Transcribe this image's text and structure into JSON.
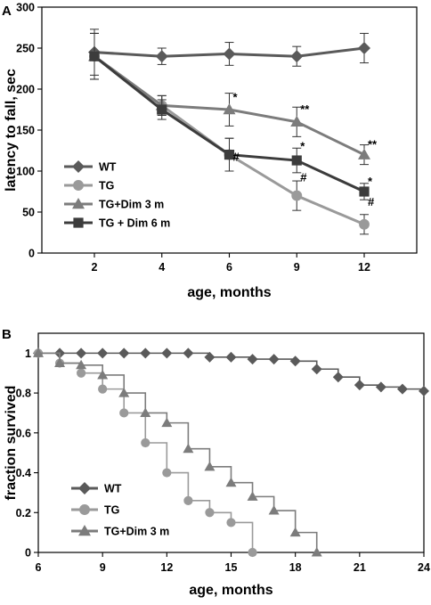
{
  "chart_data": [
    {
      "panel_label": "A",
      "type": "line",
      "xlabel": "age, months",
      "ylabel": "latency to fall, sec",
      "x_ticks": [
        2,
        4,
        6,
        9,
        12
      ],
      "y_ticks": [
        0,
        50,
        100,
        150,
        200,
        250,
        300
      ],
      "ylim": [
        0,
        300
      ],
      "x_spacing": "categorical",
      "grid": false,
      "legend_position": "bottom-left",
      "series": [
        {
          "name": "WT",
          "color": "#5a5a5a",
          "marker": "diamond",
          "x": [
            2,
            4,
            6,
            9,
            12
          ],
          "y": [
            245,
            240,
            243,
            240,
            250
          ],
          "err": [
            28,
            10,
            14,
            12,
            18
          ]
        },
        {
          "name": "TG",
          "color": "#9a9a9a",
          "marker": "circle",
          "x": [
            2,
            4,
            6,
            9,
            12
          ],
          "y": [
            240,
            180,
            120,
            70,
            35
          ],
          "err": [
            28,
            12,
            20,
            18,
            12
          ]
        },
        {
          "name": "TG+Dim 3 m",
          "color": "#7c7c7c",
          "marker": "triangle",
          "x": [
            2,
            4,
            6,
            9,
            12
          ],
          "y": [
            240,
            180,
            175,
            160,
            120
          ],
          "err": [
            28,
            12,
            20,
            18,
            12
          ]
        },
        {
          "name": "TG + Dim 6 m",
          "color": "#3c3c3c",
          "marker": "square",
          "x": [
            2,
            4,
            6,
            9,
            12
          ],
          "y": [
            240,
            175,
            120,
            113,
            75
          ],
          "err": [
            28,
            12,
            20,
            15,
            10
          ]
        }
      ],
      "annotations": [
        {
          "text": "*",
          "x": 6,
          "y": 191
        },
        {
          "text": "#",
          "x": 6,
          "y": 118
        },
        {
          "text": "**",
          "x": 9,
          "y": 176
        },
        {
          "text": "*",
          "x": 9,
          "y": 131
        },
        {
          "text": "#",
          "x": 9,
          "y": 93
        },
        {
          "text": "**",
          "x": 12,
          "y": 133
        },
        {
          "text": "*",
          "x": 12,
          "y": 88
        },
        {
          "text": "#",
          "x": 12,
          "y": 63
        }
      ]
    },
    {
      "panel_label": "B",
      "type": "line",
      "xlabel": "age, months",
      "ylabel": "fraction survived",
      "x_ticks": [
        6,
        9,
        12,
        15,
        18,
        21,
        24
      ],
      "y_ticks": [
        0,
        0.2,
        0.4,
        0.6,
        0.8,
        1
      ],
      "xlim": [
        6,
        24
      ],
      "ylim": [
        0,
        1.1
      ],
      "grid": false,
      "legend_position": "bottom-left",
      "series": [
        {
          "name": "WT",
          "color": "#5a5a5a",
          "marker": "diamond",
          "x": [
            6,
            7,
            8,
            9,
            10,
            11,
            12,
            13,
            14,
            15,
            16,
            17,
            18,
            19,
            20,
            21,
            22,
            23,
            24
          ],
          "y": [
            1,
            1,
            1,
            1,
            1,
            1,
            1,
            1,
            0.98,
            0.98,
            0.97,
            0.97,
            0.96,
            0.92,
            0.88,
            0.84,
            0.83,
            0.82,
            0.81
          ]
        },
        {
          "name": "TG",
          "color": "#9a9a9a",
          "marker": "circle",
          "x": [
            6,
            7,
            8,
            9,
            10,
            11,
            12,
            13,
            14,
            15,
            16
          ],
          "y": [
            1,
            0.95,
            0.9,
            0.82,
            0.7,
            0.55,
            0.4,
            0.26,
            0.2,
            0.15,
            0
          ]
        },
        {
          "name": "TG+Dim 3 m",
          "color": "#7c7c7c",
          "marker": "triangle",
          "x": [
            6,
            7,
            8,
            9,
            10,
            11,
            12,
            13,
            14,
            15,
            16,
            17,
            18,
            19
          ],
          "y": [
            1,
            0.95,
            0.94,
            0.89,
            0.8,
            0.7,
            0.65,
            0.52,
            0.43,
            0.35,
            0.28,
            0.21,
            0.1,
            0
          ]
        }
      ]
    }
  ]
}
